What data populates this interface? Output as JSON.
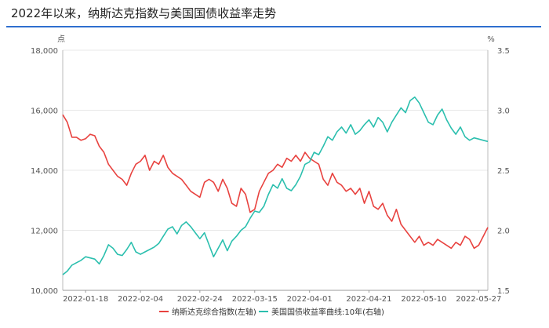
{
  "title": "2022年以来，纳斯达克指数与美国国债收益率走势",
  "colors": {
    "nasdaq": "#e8423f",
    "yield": "#2bbfae",
    "title_rule": "#2f6fcf",
    "grid": "#e8e8e8"
  },
  "chart_data": {
    "type": "line",
    "left_axis": {
      "unit_label": "点",
      "ylim": [
        10000,
        18000
      ],
      "ticks": [
        "10,000",
        "12,000",
        "14,000",
        "16,000",
        "18,000"
      ]
    },
    "right_axis": {
      "unit_label": "%",
      "ylim": [
        1.5,
        3.5
      ],
      "ticks": [
        "1.5",
        "2.0",
        "2.5",
        "3.0",
        "3.5"
      ]
    },
    "x_tick_labels": [
      "2022-01-18",
      "2022-02-04",
      "2022-02-24",
      "2022-03-15",
      "2022-04-01",
      "2022-04-21",
      "2022-05-10",
      "2022-05-27"
    ],
    "x_tick_positions": [
      5,
      17,
      30,
      42,
      54,
      67,
      79,
      91
    ],
    "grid": true,
    "legend_placement": "bottom",
    "series": [
      {
        "name": "纳斯达克综合指数(左轴)",
        "axis": "left",
        "values": [
          15850,
          15600,
          15100,
          15100,
          15000,
          15050,
          15200,
          15150,
          14800,
          14600,
          14200,
          14000,
          13800,
          13700,
          13500,
          13900,
          14200,
          14300,
          14500,
          14000,
          14300,
          14200,
          14500,
          14100,
          13900,
          13800,
          13700,
          13500,
          13300,
          13200,
          13100,
          13600,
          13700,
          13600,
          13300,
          13700,
          13400,
          12900,
          12800,
          13400,
          13200,
          12600,
          12700,
          13300,
          13600,
          13900,
          14000,
          14200,
          14100,
          14400,
          14300,
          14500,
          14300,
          14600,
          14400,
          14300,
          14200,
          13700,
          13500,
          13900,
          13600,
          13500,
          13300,
          13400,
          13200,
          13400,
          12900,
          13300,
          12800,
          12700,
          12900,
          12500,
          12300,
          12700,
          12200,
          12000,
          11800,
          11600,
          11800,
          11500,
          11600,
          11500,
          11700,
          11600,
          11500,
          11400,
          11600,
          11500,
          11800,
          11700,
          11400,
          11500,
          11800,
          12100
        ]
      },
      {
        "name": "美国国债收益率曲线:10年(右轴)",
        "axis": "right",
        "values": [
          1.63,
          1.66,
          1.71,
          1.73,
          1.75,
          1.78,
          1.77,
          1.76,
          1.72,
          1.79,
          1.88,
          1.85,
          1.8,
          1.79,
          1.84,
          1.9,
          1.82,
          1.8,
          1.82,
          1.84,
          1.86,
          1.89,
          1.95,
          2.01,
          2.03,
          1.97,
          2.04,
          2.07,
          2.03,
          1.98,
          1.93,
          1.98,
          1.88,
          1.78,
          1.85,
          1.92,
          1.83,
          1.91,
          1.95,
          2.0,
          2.03,
          2.1,
          2.16,
          2.15,
          2.2,
          2.3,
          2.38,
          2.35,
          2.43,
          2.35,
          2.33,
          2.38,
          2.45,
          2.55,
          2.57,
          2.65,
          2.63,
          2.7,
          2.78,
          2.75,
          2.82,
          2.86,
          2.81,
          2.88,
          2.8,
          2.83,
          2.88,
          2.92,
          2.86,
          2.94,
          2.9,
          2.82,
          2.9,
          2.96,
          3.02,
          2.98,
          3.08,
          3.11,
          3.06,
          2.98,
          2.9,
          2.88,
          2.96,
          3.01,
          2.92,
          2.85,
          2.8,
          2.86,
          2.78,
          2.75,
          2.77,
          2.76,
          2.75,
          2.74
        ]
      }
    ]
  }
}
